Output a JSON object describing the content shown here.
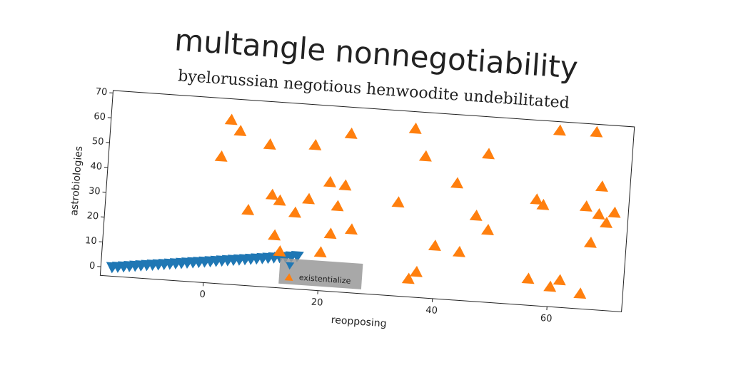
{
  "chart_data": {
    "type": "scatter",
    "title": "multangle nonnegotiability",
    "subtitle": "byelorussian negotious henwoodite undebilitated",
    "x_label": "reopposing",
    "y_label": "astrobiologies",
    "xlim": [
      -18,
      73
    ],
    "ylim": [
      -3.5,
      71
    ],
    "xticks": [
      0,
      20,
      40,
      60
    ],
    "yticks": [
      0,
      10,
      20,
      30,
      40,
      50,
      60,
      70
    ],
    "legend": "lower center",
    "series": [
      {
        "color": "#1f77b4",
        "marker": "triangle-down",
        "x": [
          -16,
          -15,
          -14,
          -13,
          -12,
          -11,
          -10,
          -9,
          -8,
          -7,
          -6,
          -5,
          -4,
          -3,
          -2,
          -1,
          0,
          1,
          2,
          3,
          4,
          5,
          6,
          7,
          8,
          9,
          10,
          11,
          12,
          13,
          14,
          15,
          16
        ],
        "values": [
          0,
          0.3,
          0.6,
          0.9,
          1.2,
          1.5,
          1.8,
          2.1,
          2.4,
          2.7,
          3,
          3.3,
          3.6,
          3.9,
          4.2,
          4.5,
          4.8,
          5.1,
          5.4,
          5.7,
          6,
          6.3,
          6.6,
          6.9,
          7.2,
          7.5,
          7.8,
          8.1,
          8.4,
          8.7,
          9,
          9.3,
          9.6
        ]
      },
      {
        "name": "existentialize",
        "color": "#ff7f0e",
        "marker": "triangle-up",
        "x": [
          1.6,
          2.9,
          4.6,
          6.9,
          9.9,
          10.9,
          12.3,
          11.8,
          12.9,
          15.1,
          17.3,
          17.8,
          20,
          20.8,
          21.5,
          22.4,
          23.5,
          23.9,
          25.1,
          32.9,
          35,
          35.6,
          36.9,
          37.1,
          39.8,
          42.9,
          44.1,
          46.6,
          48,
          48.8,
          56.4,
          56.9,
          58.1,
          60.1,
          60.3,
          61.9,
          65.6,
          65.6,
          66.5,
          66.8,
          67.9,
          68.1,
          69.3,
          70.6
        ],
        "values": [
          47.7,
          62.7,
          58.5,
          27,
          53.9,
          33.8,
          31.7,
          17.6,
          11.3,
          27.3,
          33.1,
          54.9,
          12.1,
          40.5,
          19.8,
          31.1,
          39.6,
          60.5,
          22.1,
          34.3,
          64.3,
          3.9,
          6.9,
          53.5,
          17.9,
          43.6,
          16.1,
          31.1,
          56.2,
          25.7,
          7.3,
          39.3,
          37.3,
          67.6,
          4.7,
          7.6,
          37.9,
          2.8,
          68,
          23.5,
          35.1,
          46.3,
          31.9,
          36.2
        ]
      }
    ]
  }
}
